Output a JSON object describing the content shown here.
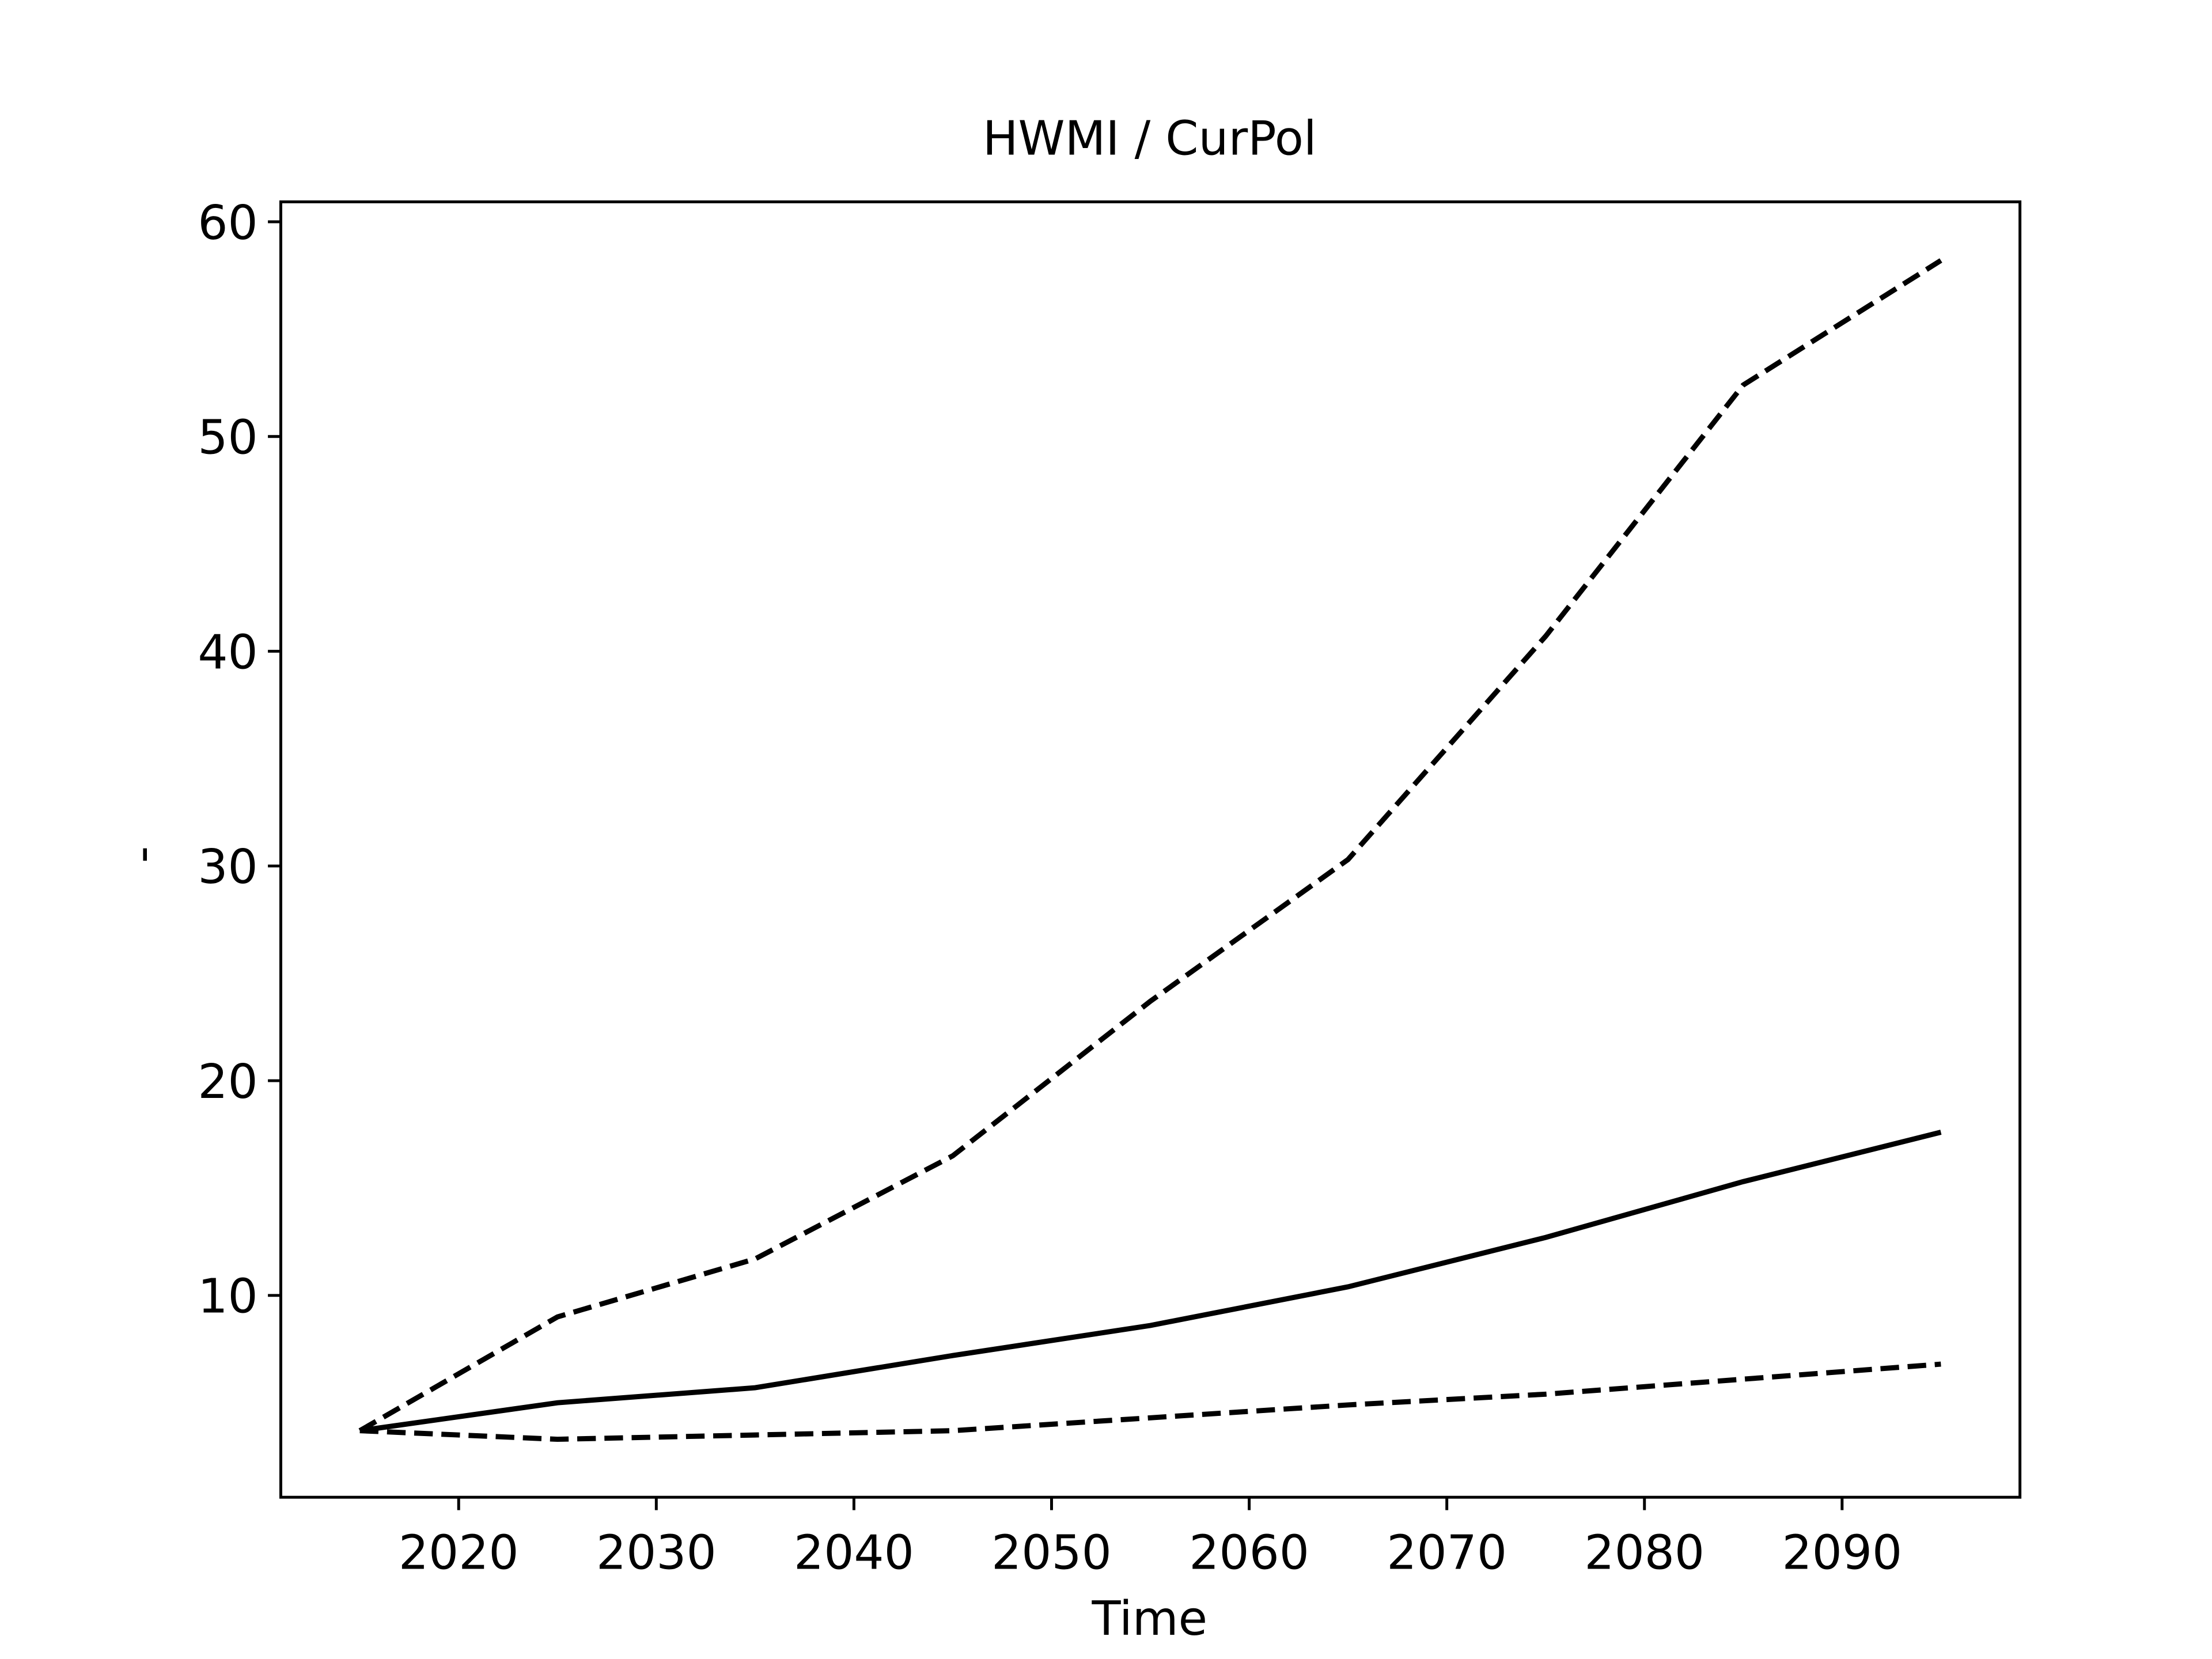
{
  "chart_data": {
    "type": "line",
    "title": "HWMI / CurPol",
    "xlabel": "Time",
    "ylabel": "-",
    "x": [
      2015,
      2025,
      2035,
      2045,
      2055,
      2065,
      2075,
      2085,
      2095
    ],
    "series": [
      {
        "color": "#000000",
        "linestyle": "dashed",
        "values": [
          3.7,
          9.0,
          11.7,
          16.5,
          23.7,
          30.3,
          40.7,
          52.4,
          58.2
        ]
      },
      {
        "color": "#000000",
        "linestyle": "solid",
        "values": [
          3.7,
          5.0,
          5.7,
          7.2,
          8.6,
          10.4,
          12.7,
          15.3,
          17.6
        ]
      },
      {
        "color": "#000000",
        "linestyle": "dashed",
        "values": [
          3.7,
          3.3,
          3.5,
          3.7,
          4.3,
          4.9,
          5.4,
          6.1,
          6.8
        ]
      }
    ],
    "xlim": [
      2011,
      2099
    ],
    "ylim": [
      0.6,
      60.93
    ],
    "xticks": [
      2020,
      2030,
      2040,
      2050,
      2060,
      2070,
      2080,
      2090
    ],
    "yticks": [
      10,
      20,
      30,
      40,
      50,
      60
    ],
    "grid": false
  }
}
